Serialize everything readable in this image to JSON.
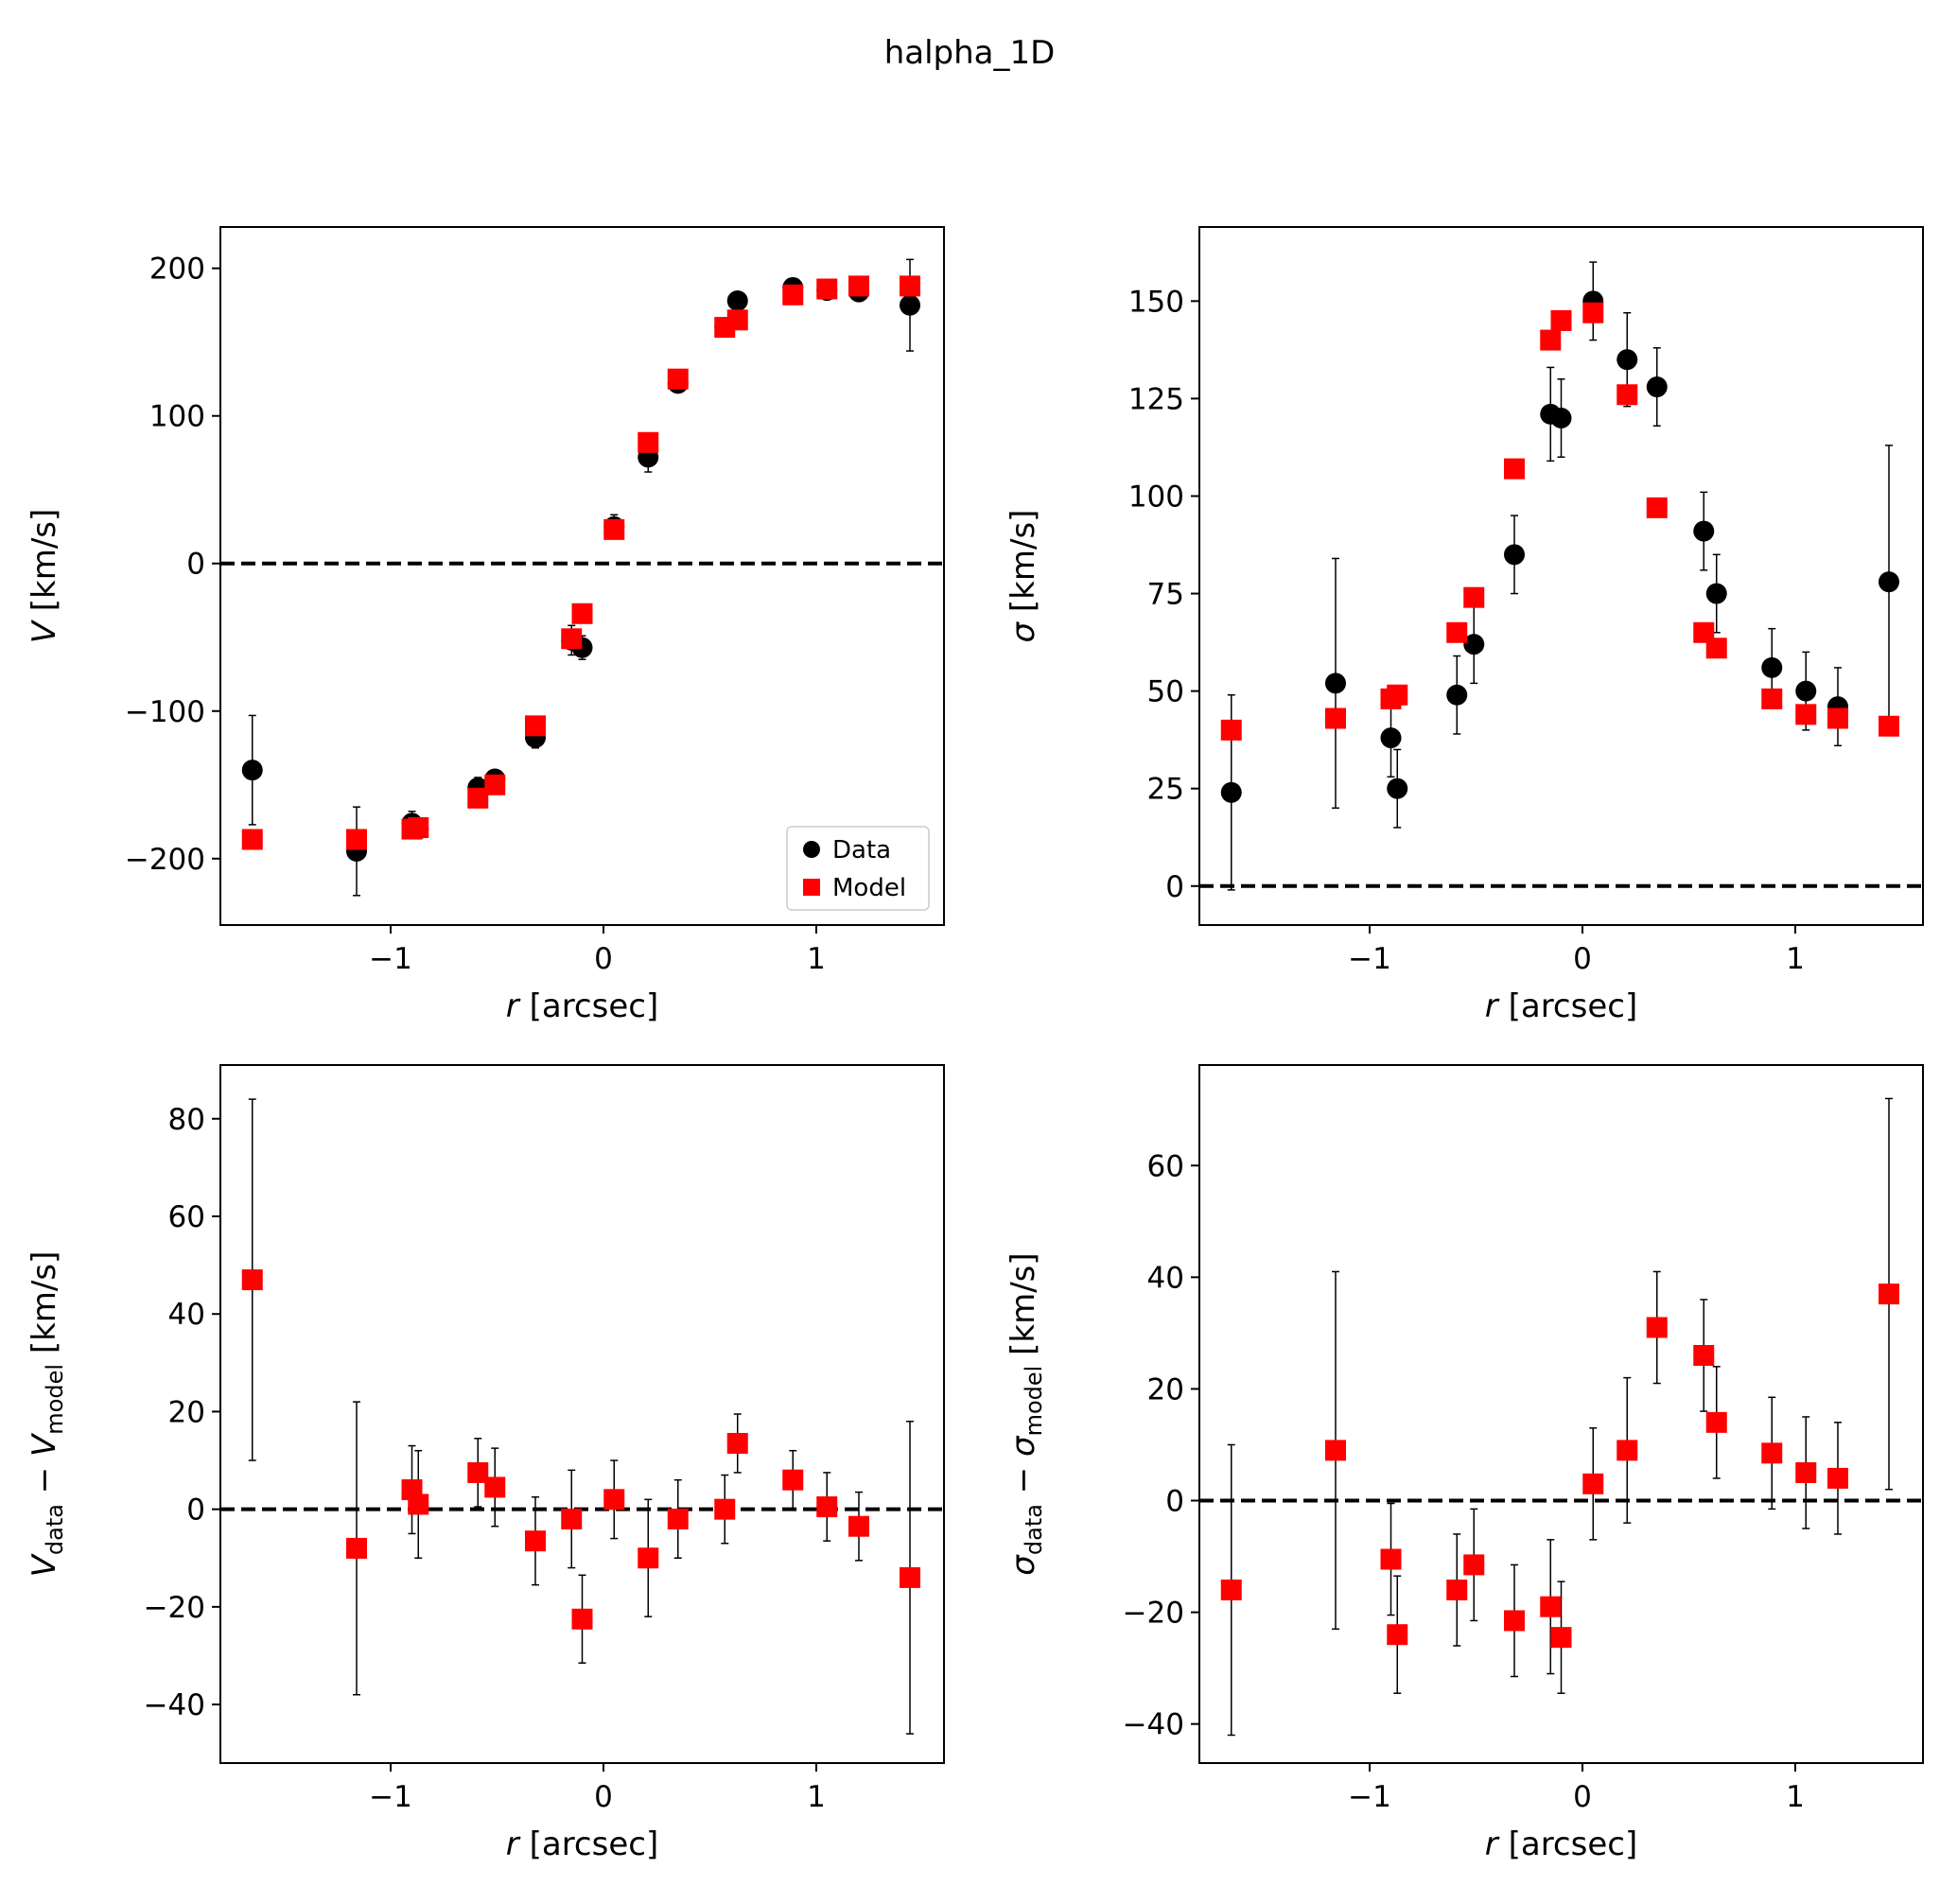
{
  "title": "halpha_1D",
  "legend": {
    "placement": "lower-right",
    "entries": [
      {
        "label": "Data",
        "marker": "circle",
        "color": "#000000"
      },
      {
        "label": "Model",
        "marker": "square",
        "color": "#ff0000"
      }
    ]
  },
  "colors": {
    "data": "#000000",
    "model": "#ff0000",
    "zero_line": "#000000"
  },
  "chart_data": [
    {
      "type": "scatter",
      "id": "velocity",
      "xlabel": {
        "main": "r",
        "rest": " [arcsec]"
      },
      "ylabel": {
        "parts": [
          {
            "t": "V",
            "i": true
          },
          {
            "t": " [km/s]"
          }
        ]
      },
      "xlim": [
        -1.8,
        1.6
      ],
      "ylim": [
        -245,
        228
      ],
      "xticks": [
        -1,
        0,
        1
      ],
      "yticks": [
        -200,
        -100,
        0,
        100,
        200
      ],
      "zero_line": true,
      "grid": false,
      "legend": true,
      "series": [
        {
          "name": "Data",
          "marker": "circle",
          "x": [
            -1.65,
            -1.16,
            -0.9,
            -0.87,
            -0.59,
            -0.51,
            -0.32,
            -0.15,
            -0.1,
            0.05,
            0.21,
            0.35,
            0.57,
            0.63,
            0.89,
            1.05,
            1.2,
            1.44
          ],
          "y": [
            -140,
            -195,
            -176,
            -180,
            -152,
            -146,
            -118,
            -52,
            -57,
            25,
            72,
            122,
            160,
            178,
            187,
            185,
            184,
            175
          ],
          "err": [
            37,
            30,
            8,
            6,
            7,
            6,
            7,
            10,
            8,
            8,
            10,
            6,
            5,
            5,
            5,
            5,
            5,
            31
          ]
        },
        {
          "name": "Model",
          "marker": "square",
          "x": [
            -1.65,
            -1.16,
            -0.9,
            -0.87,
            -0.59,
            -0.51,
            -0.32,
            -0.15,
            -0.1,
            0.05,
            0.21,
            0.35,
            0.57,
            0.63,
            0.89,
            1.05,
            1.2,
            1.44
          ],
          "y": [
            -187,
            -187,
            -180,
            -179,
            -159,
            -150,
            -110,
            -51,
            -34,
            23,
            82,
            125,
            160,
            165,
            182,
            186,
            188,
            188
          ]
        }
      ]
    },
    {
      "type": "scatter",
      "id": "dispersion",
      "xlabel": {
        "main": "r",
        "rest": " [arcsec]"
      },
      "ylabel": {
        "parts": [
          {
            "t": "σ",
            "i": true
          },
          {
            "t": " [km/s]"
          }
        ]
      },
      "xlim": [
        -1.8,
        1.6
      ],
      "ylim": [
        -10,
        169
      ],
      "xticks": [
        -1,
        0,
        1
      ],
      "yticks": [
        0,
        25,
        50,
        75,
        100,
        125,
        150
      ],
      "zero_line": true,
      "grid": false,
      "legend": false,
      "series": [
        {
          "name": "Data",
          "marker": "circle",
          "x": [
            -1.65,
            -1.16,
            -0.9,
            -0.87,
            -0.59,
            -0.51,
            -0.32,
            -0.15,
            -0.1,
            0.05,
            0.21,
            0.35,
            0.57,
            0.63,
            0.89,
            1.05,
            1.2,
            1.44
          ],
          "y": [
            24,
            52,
            38,
            25,
            49,
            62,
            85,
            121,
            120,
            150,
            135,
            128,
            91,
            75,
            56,
            50,
            46,
            78
          ],
          "err": [
            25,
            32,
            10,
            10,
            10,
            10,
            10,
            12,
            10,
            10,
            12,
            10,
            10,
            10,
            10,
            10,
            10,
            35
          ]
        },
        {
          "name": "Model",
          "marker": "square",
          "x": [
            -1.65,
            -1.16,
            -0.9,
            -0.87,
            -0.59,
            -0.51,
            -0.32,
            -0.15,
            -0.1,
            0.05,
            0.21,
            0.35,
            0.57,
            0.63,
            0.89,
            1.05,
            1.2,
            1.44
          ],
          "y": [
            40,
            43,
            48,
            49,
            65,
            74,
            107,
            140,
            145,
            147,
            126,
            97,
            65,
            61,
            48,
            44,
            43,
            41
          ]
        }
      ]
    },
    {
      "type": "scatter",
      "id": "velocity_residual",
      "xlabel": {
        "main": "r",
        "rest": " [arcsec]"
      },
      "ylabel": {
        "parts": [
          {
            "t": "V",
            "i": true
          },
          {
            "t": "data",
            "sub": true
          },
          {
            "t": " − "
          },
          {
            "t": "V",
            "i": true
          },
          {
            "t": "model",
            "sub": true
          },
          {
            "t": " [km/s]"
          }
        ]
      },
      "xlim": [
        -1.8,
        1.6
      ],
      "ylim": [
        -52,
        91
      ],
      "xticks": [
        -1,
        0,
        1
      ],
      "yticks": [
        -40,
        -20,
        0,
        20,
        40,
        60,
        80
      ],
      "zero_line": true,
      "grid": false,
      "legend": false,
      "series": [
        {
          "name": "Residual",
          "marker": "square",
          "x": [
            -1.65,
            -1.16,
            -0.9,
            -0.87,
            -0.59,
            -0.51,
            -0.32,
            -0.15,
            -0.1,
            0.05,
            0.21,
            0.35,
            0.57,
            0.63,
            0.89,
            1.05,
            1.2,
            1.44
          ],
          "y": [
            47,
            -8,
            4,
            1,
            7.5,
            4.5,
            -6.5,
            -2,
            -22.5,
            2,
            -10,
            -2,
            0,
            13.5,
            6,
            0.5,
            -3.5,
            -14
          ],
          "err": [
            37,
            30,
            9,
            11,
            7,
            8,
            9,
            10,
            9,
            8,
            12,
            8,
            7,
            6,
            6,
            7,
            7,
            32
          ]
        }
      ]
    },
    {
      "type": "scatter",
      "id": "dispersion_residual",
      "xlabel": {
        "main": "r",
        "rest": " [arcsec]"
      },
      "ylabel": {
        "parts": [
          {
            "t": "σ",
            "i": true
          },
          {
            "t": "data",
            "sub": true
          },
          {
            "t": " − "
          },
          {
            "t": "σ",
            "i": true
          },
          {
            "t": "model",
            "sub": true
          },
          {
            "t": " [km/s]"
          }
        ]
      },
      "xlim": [
        -1.8,
        1.6
      ],
      "ylim": [
        -47,
        78
      ],
      "xticks": [
        -1,
        0,
        1
      ],
      "yticks": [
        -40,
        -20,
        0,
        20,
        40,
        60
      ],
      "zero_line": true,
      "grid": false,
      "legend": false,
      "series": [
        {
          "name": "Residual",
          "marker": "square",
          "x": [
            -1.65,
            -1.16,
            -0.9,
            -0.87,
            -0.59,
            -0.51,
            -0.32,
            -0.15,
            -0.1,
            0.05,
            0.21,
            0.35,
            0.57,
            0.63,
            0.89,
            1.05,
            1.2,
            1.44
          ],
          "y": [
            -16,
            9,
            -10.5,
            -24,
            -16,
            -11.5,
            -21.5,
            -19,
            -24.5,
            3,
            9,
            31,
            26,
            14,
            8.5,
            5,
            4,
            37
          ],
          "err": [
            26,
            32,
            10,
            10.5,
            10,
            10,
            10,
            12,
            10,
            10,
            13,
            10,
            10,
            10,
            10,
            10,
            10,
            35
          ]
        }
      ]
    }
  ]
}
